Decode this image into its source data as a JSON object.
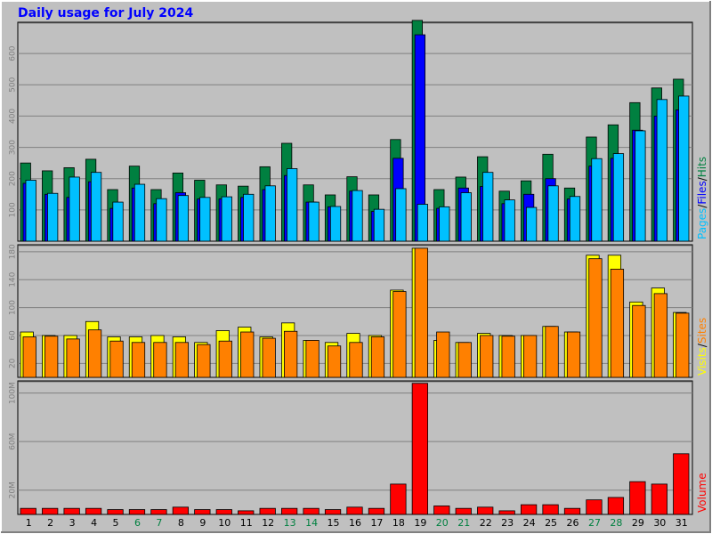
{
  "chart_data": {
    "type": "bar",
    "title": "Daily usage for July 2024",
    "categories": [
      "1",
      "2",
      "3",
      "4",
      "5",
      "6",
      "7",
      "8",
      "9",
      "10",
      "11",
      "12",
      "13",
      "14",
      "15",
      "16",
      "17",
      "18",
      "19",
      "20",
      "21",
      "22",
      "23",
      "24",
      "25",
      "26",
      "27",
      "28",
      "29",
      "30",
      "31"
    ],
    "weekend_days": [
      "6",
      "7",
      "13",
      "14",
      "20",
      "21",
      "27",
      "28"
    ],
    "panels": [
      {
        "id": "hits",
        "legend": [
          {
            "text": "Pages",
            "color": "#00c0ff"
          },
          {
            "text": "/",
            "color": "#000000"
          },
          {
            "text": "Files",
            "color": "#0000ff"
          },
          {
            "text": "/",
            "color": "#000000"
          },
          {
            "text": "Hits",
            "color": "#008040"
          }
        ],
        "y_ticks": [
          "100",
          "200",
          "300",
          "400",
          "500",
          "600"
        ],
        "ylim": [
          0,
          700
        ],
        "series": [
          {
            "name": "Hits",
            "color": "#008040",
            "values": [
              250,
              225,
              235,
              262,
              165,
              240,
              165,
              218,
              195,
              180,
              176,
              238,
              313,
              180,
              148,
              206,
              148,
              325,
              706,
              165,
              205,
              270,
              160,
              193,
              278,
              170,
              333,
              372,
              443,
              490,
              518
            ]
          },
          {
            "name": "Files",
            "color": "#0000ff",
            "values": [
              185,
              150,
              140,
              190,
              105,
              170,
              120,
              155,
              135,
              135,
              140,
              165,
              210,
              125,
              110,
              160,
              95,
              265,
              660,
              105,
              170,
              175,
              120,
              150,
              200,
              135,
              240,
              265,
              355,
              400,
              420
            ]
          },
          {
            "name": "Pages",
            "color": "#00c0ff",
            "values": [
              195,
              153,
              205,
              220,
              125,
              182,
              136,
              146,
              140,
              142,
              150,
              177,
              232,
              125,
              111,
              162,
              102,
              168,
              118,
              110,
              155,
              220,
              132,
              108,
              177,
              143,
              264,
              280,
              353,
              453,
              464
            ]
          }
        ]
      },
      {
        "id": "visits",
        "legend": [
          {
            "text": "Visits",
            "color": "#ffff00"
          },
          {
            "text": "/",
            "color": "#000000"
          },
          {
            "text": "Sites",
            "color": "#ff8000"
          }
        ],
        "y_ticks": [
          "20",
          "60",
          "100",
          "140",
          "180"
        ],
        "ylim": [
          0,
          190
        ],
        "series": [
          {
            "name": "Visits",
            "color": "#ffff00",
            "values": [
              65,
              60,
              60,
              80,
              58,
              58,
              60,
              58,
              50,
              67,
              72,
              58,
              78,
              53,
              50,
              63,
              60,
              125,
              185,
              53,
              50,
              63,
              60,
              60,
              73,
              65,
              175,
              175,
              108,
              128,
              93
            ]
          },
          {
            "name": "Sites",
            "color": "#ff8000",
            "values": [
              58,
              59,
              55,
              68,
              52,
              50,
              50,
              50,
              47,
              52,
              65,
              56,
              66,
              53,
              45,
              50,
              58,
              123,
              185,
              65,
              50,
              60,
              59,
              60,
              73,
              65,
              170,
              155,
              103,
              120,
              92
            ]
          }
        ]
      },
      {
        "id": "volume",
        "legend": [
          {
            "text": "Volume",
            "color": "#ff0000"
          }
        ],
        "y_ticks": [
          "20M",
          "60M",
          "100M"
        ],
        "ylim": [
          0,
          110
        ],
        "series": [
          {
            "name": "Volume",
            "color": "#ff0000",
            "values": [
              5,
              5,
              5,
              5,
              4,
              4,
              4,
              6,
              4,
              4,
              3,
              5,
              5,
              5,
              4,
              6,
              5,
              25,
              108,
              7,
              5,
              6,
              3,
              8,
              8,
              5,
              12,
              14,
              27,
              25,
              50
            ]
          }
        ]
      }
    ]
  }
}
